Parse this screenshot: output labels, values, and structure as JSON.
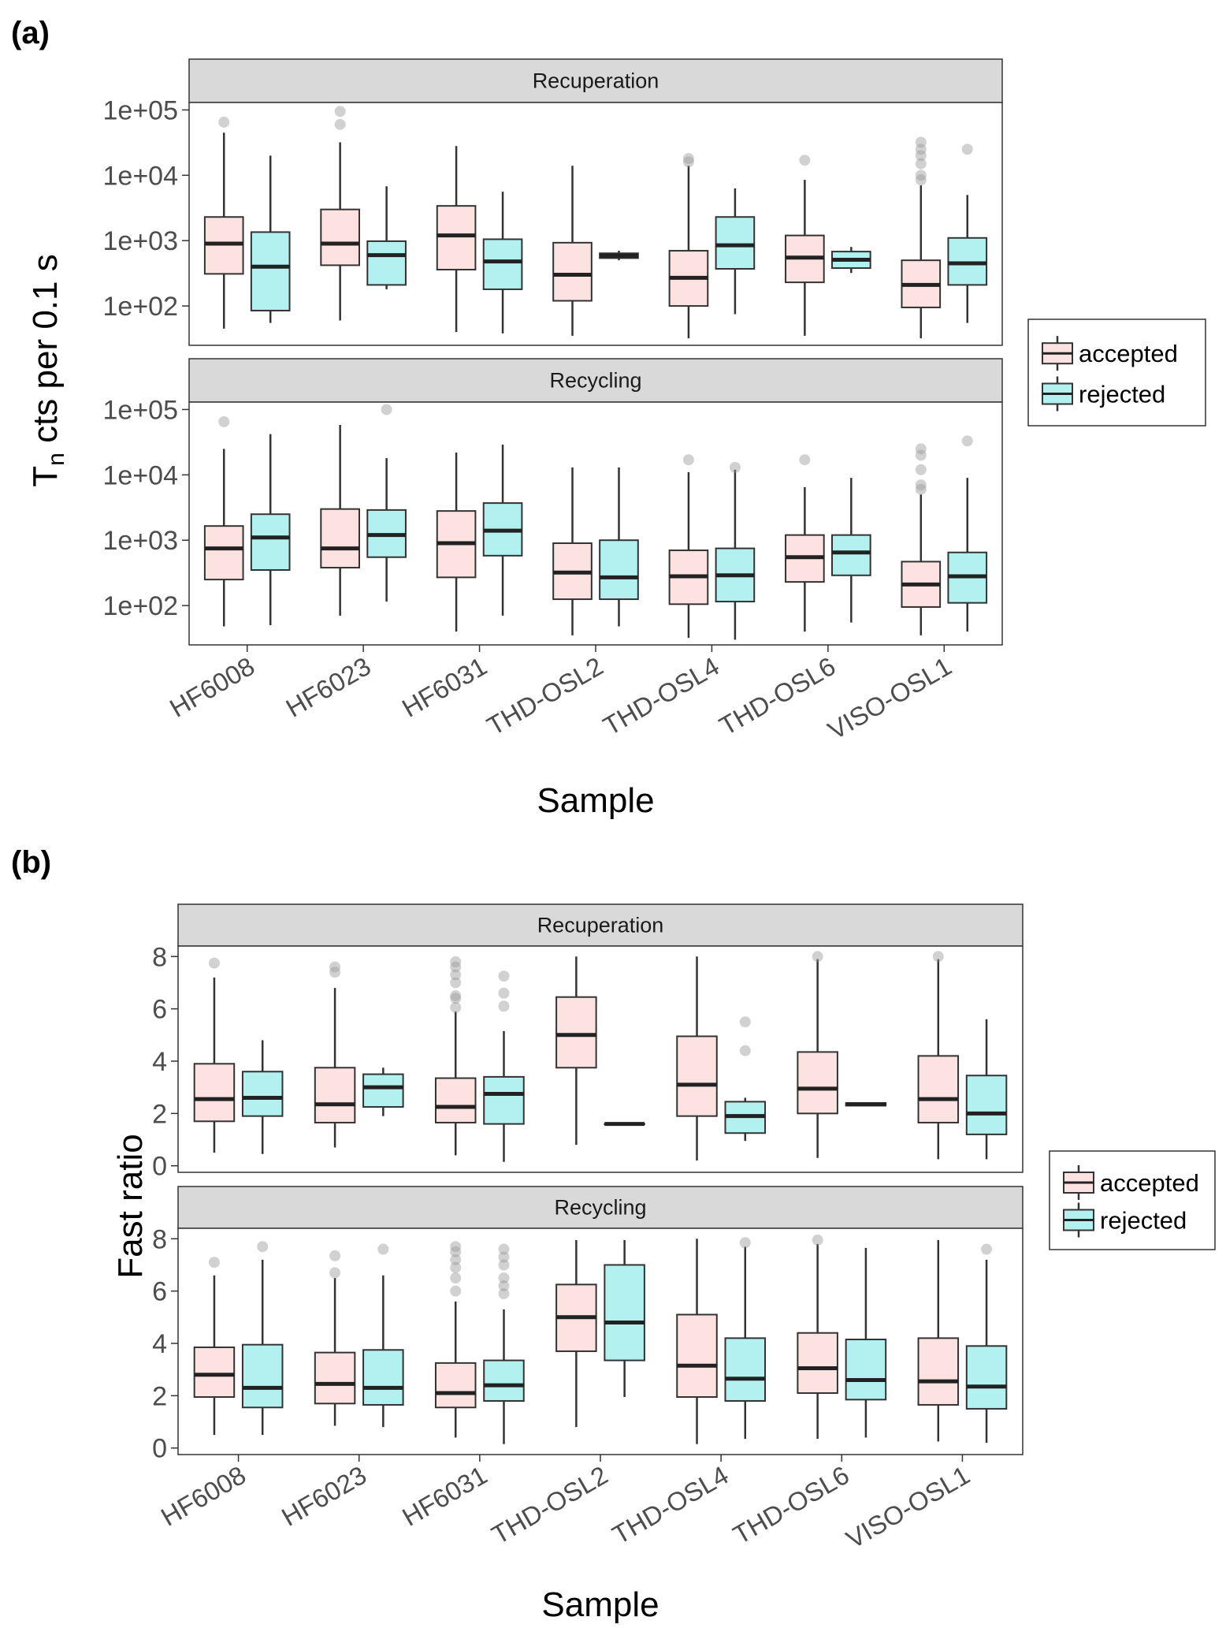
{
  "colors": {
    "accepted": "#FDE2E2",
    "rejected": "#B3F0F0",
    "strip": "#D9D9D9",
    "outlier": "#999999",
    "line": "#333333"
  },
  "chart_data": [
    {
      "panel_label": "(a)",
      "type": "boxplot",
      "scale": "log10",
      "ylabel": "T",
      "ylabel_sub": "n",
      "ylabel_rest": "cts per 0.1 s",
      "xlabel": "Sample",
      "categories": [
        "HF6008",
        "HF6023",
        "HF6031",
        "THD-OSL2",
        "THD-OSL4",
        "THD-OSL6",
        "VISO-OSL1"
      ],
      "yticks": [
        {
          "label": "1e+02",
          "value": 100
        },
        {
          "label": "1e+03",
          "value": 1000
        },
        {
          "label": "1e+04",
          "value": 10000
        },
        {
          "label": "1e+05",
          "value": 100000
        }
      ],
      "ylim": [
        25,
        130000
      ],
      "legend": {
        "position": "right",
        "entries": [
          "accepted",
          "rejected"
        ]
      },
      "facets": [
        {
          "name": "Recuperation",
          "series": [
            {
              "name": "accepted",
              "boxes": [
                {
                  "min": 45,
                  "q1": 310,
                  "median": 900,
                  "q3": 2300,
                  "max": 45000,
                  "outliers": [
                    65000
                  ]
                },
                {
                  "min": 60,
                  "q1": 420,
                  "median": 900,
                  "q3": 3000,
                  "max": 32000,
                  "outliers": [
                    60000,
                    95000
                  ]
                },
                {
                  "min": 40,
                  "q1": 360,
                  "median": 1200,
                  "q3": 3400,
                  "max": 28000,
                  "outliers": []
                },
                {
                  "min": 35,
                  "q1": 120,
                  "median": 300,
                  "q3": 930,
                  "max": 14000,
                  "outliers": []
                },
                {
                  "min": 32,
                  "q1": 100,
                  "median": 270,
                  "q3": 700,
                  "max": 14000,
                  "outliers": [
                    16000,
                    18000
                  ]
                },
                {
                  "min": 35,
                  "q1": 230,
                  "median": 550,
                  "q3": 1200,
                  "max": 8500,
                  "outliers": [
                    17000
                  ]
                },
                {
                  "min": 32,
                  "q1": 95,
                  "median": 210,
                  "q3": 500,
                  "max": 7000,
                  "outliers": [
                    8500,
                    10000,
                    15000,
                    20000,
                    25000,
                    32000
                  ]
                }
              ]
            },
            {
              "name": "rejected",
              "boxes": [
                {
                  "min": 55,
                  "q1": 85,
                  "median": 400,
                  "q3": 1350,
                  "max": 20000,
                  "outliers": []
                },
                {
                  "min": 180,
                  "q1": 210,
                  "median": 600,
                  "q3": 980,
                  "max": 6800,
                  "outliers": []
                },
                {
                  "min": 38,
                  "q1": 180,
                  "median": 480,
                  "q3": 1050,
                  "max": 5600,
                  "outliers": []
                },
                {
                  "min": 500,
                  "q1": 540,
                  "median": 590,
                  "q3": 640,
                  "max": 700,
                  "outliers": []
                },
                {
                  "min": 75,
                  "q1": 370,
                  "median": 850,
                  "q3": 2300,
                  "max": 6300,
                  "outliers": []
                },
                {
                  "min": 320,
                  "q1": 380,
                  "median": 510,
                  "q3": 680,
                  "max": 800,
                  "outliers": []
                },
                {
                  "min": 55,
                  "q1": 210,
                  "median": 450,
                  "q3": 1100,
                  "max": 5000,
                  "outliers": [
                    25000
                  ]
                }
              ]
            }
          ]
        },
        {
          "name": "Recycling",
          "series": [
            {
              "name": "accepted",
              "boxes": [
                {
                  "min": 48,
                  "q1": 250,
                  "median": 750,
                  "q3": 1650,
                  "max": 25000,
                  "outliers": [
                    65000
                  ]
                },
                {
                  "min": 70,
                  "q1": 380,
                  "median": 750,
                  "q3": 3000,
                  "max": 58000,
                  "outliers": []
                },
                {
                  "min": 40,
                  "q1": 270,
                  "median": 900,
                  "q3": 2800,
                  "max": 22000,
                  "outliers": []
                },
                {
                  "min": 35,
                  "q1": 125,
                  "median": 320,
                  "q3": 900,
                  "max": 13000,
                  "outliers": []
                },
                {
                  "min": 32,
                  "q1": 105,
                  "median": 280,
                  "q3": 700,
                  "max": 11000,
                  "outliers": [
                    17000
                  ]
                },
                {
                  "min": 40,
                  "q1": 230,
                  "median": 550,
                  "q3": 1200,
                  "max": 6500,
                  "outliers": [
                    17000
                  ]
                },
                {
                  "min": 35,
                  "q1": 95,
                  "median": 210,
                  "q3": 470,
                  "max": 5000,
                  "outliers": [
                    6000,
                    7000,
                    12000,
                    20000,
                    25000
                  ]
                }
              ]
            },
            {
              "name": "rejected",
              "boxes": [
                {
                  "min": 50,
                  "q1": 350,
                  "median": 1100,
                  "q3": 2500,
                  "max": 42000,
                  "outliers": []
                },
                {
                  "min": 115,
                  "q1": 550,
                  "median": 1200,
                  "q3": 2900,
                  "max": 18000,
                  "outliers": [
                    100000
                  ]
                },
                {
                  "min": 70,
                  "q1": 580,
                  "median": 1400,
                  "q3": 3700,
                  "max": 29000,
                  "outliers": []
                },
                {
                  "min": 48,
                  "q1": 125,
                  "median": 270,
                  "q3": 1000,
                  "max": 13000,
                  "outliers": []
                },
                {
                  "min": 30,
                  "q1": 115,
                  "median": 290,
                  "q3": 750,
                  "max": 12000,
                  "outliers": [
                    13000
                  ]
                },
                {
                  "min": 55,
                  "q1": 290,
                  "median": 650,
                  "q3": 1200,
                  "max": 9000,
                  "outliers": []
                },
                {
                  "min": 40,
                  "q1": 110,
                  "median": 280,
                  "q3": 650,
                  "max": 9000,
                  "outliers": [
                    33000
                  ]
                }
              ]
            }
          ]
        }
      ]
    },
    {
      "panel_label": "(b)",
      "type": "boxplot",
      "scale": "linear",
      "ylabel": "Fast ratio",
      "xlabel": "Sample",
      "categories": [
        "HF6008",
        "HF6023",
        "HF6031",
        "THD-OSL2",
        "THD-OSL4",
        "THD-OSL6",
        "VISO-OSL1"
      ],
      "yticks": [
        {
          "label": "0",
          "value": 0
        },
        {
          "label": "2",
          "value": 2
        },
        {
          "label": "4",
          "value": 4
        },
        {
          "label": "6",
          "value": 6
        },
        {
          "label": "8",
          "value": 8
        }
      ],
      "ylim": [
        -0.25,
        8.4
      ],
      "legend": {
        "position": "right",
        "entries": [
          "accepted",
          "rejected"
        ]
      },
      "facets": [
        {
          "name": "Recuperation",
          "series": [
            {
              "name": "accepted",
              "boxes": [
                {
                  "min": 0.5,
                  "q1": 1.7,
                  "median": 2.55,
                  "q3": 3.9,
                  "max": 7.2,
                  "outliers": [
                    7.75
                  ]
                },
                {
                  "min": 0.7,
                  "q1": 1.65,
                  "median": 2.35,
                  "q3": 3.75,
                  "max": 6.8,
                  "outliers": [
                    7.4,
                    7.6
                  ]
                },
                {
                  "min": 0.4,
                  "q1": 1.65,
                  "median": 2.25,
                  "q3": 3.35,
                  "max": 5.9,
                  "outliers": [
                    6.05,
                    6.4,
                    6.5,
                    7.0,
                    7.3,
                    7.6,
                    7.8
                  ]
                },
                {
                  "min": 0.8,
                  "q1": 3.75,
                  "median": 5.0,
                  "q3": 6.45,
                  "max": 8.0,
                  "outliers": []
                },
                {
                  "min": 0.2,
                  "q1": 1.9,
                  "median": 3.1,
                  "q3": 4.95,
                  "max": 8.0,
                  "outliers": []
                },
                {
                  "min": 0.3,
                  "q1": 2.0,
                  "median": 2.95,
                  "q3": 4.35,
                  "max": 7.9,
                  "outliers": [
                    8.0
                  ]
                },
                {
                  "min": 0.25,
                  "q1": 1.65,
                  "median": 2.55,
                  "q3": 4.2,
                  "max": 7.9,
                  "outliers": [
                    8.0
                  ]
                }
              ]
            },
            {
              "name": "rejected",
              "boxes": [
                {
                  "min": 0.45,
                  "q1": 1.9,
                  "median": 2.6,
                  "q3": 3.6,
                  "max": 4.8,
                  "outliers": []
                },
                {
                  "min": 1.9,
                  "q1": 2.25,
                  "median": 3.0,
                  "q3": 3.5,
                  "max": 3.75,
                  "outliers": []
                },
                {
                  "min": 0.15,
                  "q1": 1.6,
                  "median": 2.75,
                  "q3": 3.4,
                  "max": 5.15,
                  "outliers": [
                    6.1,
                    6.6,
                    7.25
                  ]
                },
                {
                  "min": 1.6,
                  "q1": 1.6,
                  "median": 1.6,
                  "q3": 1.6,
                  "max": 1.6,
                  "outliers": []
                },
                {
                  "min": 0.95,
                  "q1": 1.25,
                  "median": 1.9,
                  "q3": 2.45,
                  "max": 2.6,
                  "outliers": [
                    4.4,
                    5.5
                  ]
                },
                {
                  "min": 2.3,
                  "q1": 2.3,
                  "median": 2.35,
                  "q3": 2.4,
                  "max": 2.4,
                  "outliers": []
                },
                {
                  "min": 0.25,
                  "q1": 1.2,
                  "median": 2.0,
                  "q3": 3.45,
                  "max": 5.6,
                  "outliers": []
                }
              ]
            }
          ]
        },
        {
          "name": "Recycling",
          "series": [
            {
              "name": "accepted",
              "boxes": [
                {
                  "min": 0.5,
                  "q1": 1.95,
                  "median": 2.8,
                  "q3": 3.85,
                  "max": 6.6,
                  "outliers": [
                    7.1
                  ]
                },
                {
                  "min": 0.85,
                  "q1": 1.7,
                  "median": 2.45,
                  "q3": 3.65,
                  "max": 6.5,
                  "outliers": [
                    6.7,
                    7.35
                  ]
                },
                {
                  "min": 0.4,
                  "q1": 1.55,
                  "median": 2.1,
                  "q3": 3.25,
                  "max": 5.6,
                  "outliers": [
                    6.0,
                    6.5,
                    6.9,
                    7.2,
                    7.5,
                    7.7
                  ]
                },
                {
                  "min": 0.8,
                  "q1": 3.7,
                  "median": 5.0,
                  "q3": 6.25,
                  "max": 7.95,
                  "outliers": []
                },
                {
                  "min": 0.15,
                  "q1": 1.95,
                  "median": 3.15,
                  "q3": 5.1,
                  "max": 8.0,
                  "outliers": []
                },
                {
                  "min": 0.35,
                  "q1": 2.1,
                  "median": 3.05,
                  "q3": 4.4,
                  "max": 7.8,
                  "outliers": [
                    7.95
                  ]
                },
                {
                  "min": 0.25,
                  "q1": 1.65,
                  "median": 2.55,
                  "q3": 4.2,
                  "max": 7.95,
                  "outliers": []
                }
              ]
            },
            {
              "name": "rejected",
              "boxes": [
                {
                  "min": 0.5,
                  "q1": 1.55,
                  "median": 2.3,
                  "q3": 3.95,
                  "max": 7.2,
                  "outliers": [
                    7.7
                  ]
                },
                {
                  "min": 0.8,
                  "q1": 1.65,
                  "median": 2.3,
                  "q3": 3.75,
                  "max": 6.6,
                  "outliers": [
                    7.6
                  ]
                },
                {
                  "min": 0.15,
                  "q1": 1.8,
                  "median": 2.4,
                  "q3": 3.35,
                  "max": 5.3,
                  "outliers": [
                    5.9,
                    6.2,
                    6.5,
                    7.0,
                    7.3,
                    7.6
                  ]
                },
                {
                  "min": 1.95,
                  "q1": 3.35,
                  "median": 4.8,
                  "q3": 7.0,
                  "max": 7.95,
                  "outliers": []
                },
                {
                  "min": 0.35,
                  "q1": 1.8,
                  "median": 2.65,
                  "q3": 4.2,
                  "max": 7.7,
                  "outliers": [
                    7.85
                  ]
                },
                {
                  "min": 0.4,
                  "q1": 1.85,
                  "median": 2.6,
                  "q3": 4.15,
                  "max": 7.65,
                  "outliers": []
                },
                {
                  "min": 0.2,
                  "q1": 1.5,
                  "median": 2.35,
                  "q3": 3.9,
                  "max": 7.2,
                  "outliers": [
                    7.6
                  ]
                }
              ]
            }
          ]
        }
      ]
    }
  ]
}
